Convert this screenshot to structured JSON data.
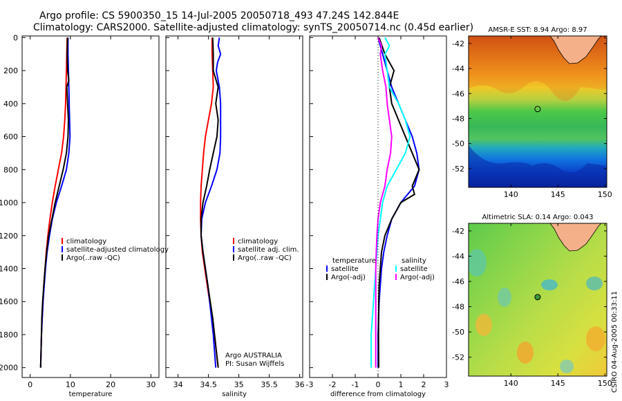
{
  "figure": {
    "title_line1": "Argo profile: CS 5900350_15 14-Jul-2005 20050718_493 47.24S 142.844E",
    "title_line2": "Climatology: CARS2000. Satellite-adjusted climatology: synTS_20050714.nc (0.45d earlier)",
    "side_stamp": "CSIRO 04-Aug-2005 00:33:11",
    "credit_line1": "Argo AUSTRALIA",
    "credit_line2": "PI: Susan Wijffels"
  },
  "colors": {
    "red": "#ff0000",
    "blue": "#0000ff",
    "black": "#000000",
    "cyan": "#00ffff",
    "magenta": "#ff00ff"
  },
  "chart_data": [
    {
      "type": "line",
      "id": "temperature",
      "xlabel": "temperature",
      "ylabel": "depth",
      "xlim": [
        -2,
        32
      ],
      "ylim": [
        2060,
        -10
      ],
      "xticks": [
        0,
        10,
        20,
        30
      ],
      "yticks": [
        0,
        200,
        400,
        600,
        800,
        1000,
        1200,
        1400,
        1600,
        1800,
        2000
      ],
      "legend": [
        "climatology",
        "satellite-adjusted climatology",
        "Argo(..raw -QC)"
      ],
      "series": [
        {
          "name": "climatology",
          "color": "red",
          "points": [
            [
              9.2,
              0
            ],
            [
              9.1,
              100
            ],
            [
              9.0,
              200
            ],
            [
              8.9,
              300
            ],
            [
              8.8,
              400
            ],
            [
              8.6,
              500
            ],
            [
              8.3,
              600
            ],
            [
              7.8,
              700
            ],
            [
              7.0,
              800
            ],
            [
              6.2,
              900
            ],
            [
              5.5,
              1000
            ],
            [
              4.9,
              1100
            ],
            [
              4.4,
              1200
            ],
            [
              4.0,
              1300
            ],
            [
              3.7,
              1400
            ],
            [
              3.4,
              1500
            ],
            [
              3.2,
              1600
            ],
            [
              3.0,
              1700
            ],
            [
              2.8,
              1800
            ],
            [
              2.7,
              1900
            ],
            [
              2.6,
              2000
            ]
          ]
        },
        {
          "name": "satellite-adjusted climatology",
          "color": "blue",
          "points": [
            [
              9.4,
              0
            ],
            [
              9.4,
              100
            ],
            [
              9.5,
              200
            ],
            [
              9.6,
              300
            ],
            [
              9.7,
              400
            ],
            [
              9.8,
              500
            ],
            [
              9.9,
              600
            ],
            [
              9.6,
              700
            ],
            [
              9.0,
              800
            ],
            [
              7.8,
              900
            ],
            [
              6.5,
              1000
            ],
            [
              5.5,
              1100
            ],
            [
              4.8,
              1200
            ],
            [
              4.2,
              1300
            ],
            [
              3.8,
              1400
            ],
            [
              3.5,
              1500
            ],
            [
              3.2,
              1600
            ],
            [
              3.0,
              1700
            ],
            [
              2.8,
              1800
            ],
            [
              2.7,
              1900
            ],
            [
              2.6,
              2000
            ]
          ]
        },
        {
          "name": "Argo(..raw -QC)",
          "color": "black",
          "points": [
            [
              9.3,
              0
            ],
            [
              9.2,
              100
            ],
            [
              9.3,
              200
            ],
            [
              9.6,
              260
            ],
            [
              9.1,
              300
            ],
            [
              9.3,
              400
            ],
            [
              9.5,
              500
            ],
            [
              9.4,
              600
            ],
            [
              9.0,
              700
            ],
            [
              8.2,
              800
            ],
            [
              7.2,
              900
            ],
            [
              6.2,
              1000
            ],
            [
              5.4,
              1100
            ],
            [
              4.6,
              1200
            ],
            [
              4.1,
              1300
            ],
            [
              3.7,
              1400
            ],
            [
              3.4,
              1500
            ],
            [
              3.1,
              1600
            ],
            [
              2.9,
              1700
            ],
            [
              2.8,
              1800
            ],
            [
              2.7,
              1900
            ],
            [
              2.6,
              2000
            ]
          ]
        }
      ]
    },
    {
      "type": "line",
      "id": "salinity",
      "xlabel": "salinity",
      "ylabel": "depth",
      "xlim": [
        33.8,
        36.05
      ],
      "ylim": [
        2060,
        -10
      ],
      "xticks": [
        34,
        34.5,
        35,
        35.5,
        36
      ],
      "legend": [
        "climatology",
        "satellite adj. clim.",
        "Argo(..raw -QC)"
      ],
      "series": [
        {
          "name": "climatology",
          "color": "red",
          "points": [
            [
              34.56,
              0
            ],
            [
              34.56,
              100
            ],
            [
              34.57,
              200
            ],
            [
              34.58,
              300
            ],
            [
              34.55,
              400
            ],
            [
              34.5,
              500
            ],
            [
              34.45,
              600
            ],
            [
              34.42,
              700
            ],
            [
              34.4,
              800
            ],
            [
              34.38,
              900
            ],
            [
              34.37,
              1000
            ],
            [
              34.37,
              1100
            ],
            [
              34.38,
              1200
            ],
            [
              34.4,
              1300
            ],
            [
              34.44,
              1400
            ],
            [
              34.48,
              1500
            ],
            [
              34.52,
              1600
            ],
            [
              34.56,
              1700
            ],
            [
              34.6,
              1800
            ],
            [
              34.63,
              1900
            ],
            [
              34.66,
              2000
            ]
          ]
        },
        {
          "name": "satellite adj. clim.",
          "color": "blue",
          "points": [
            [
              34.68,
              0
            ],
            [
              34.66,
              50
            ],
            [
              34.7,
              100
            ],
            [
              34.65,
              150
            ],
            [
              34.63,
              200
            ],
            [
              34.68,
              300
            ],
            [
              34.7,
              400
            ],
            [
              34.7,
              500
            ],
            [
              34.7,
              600
            ],
            [
              34.69,
              700
            ],
            [
              34.64,
              800
            ],
            [
              34.55,
              900
            ],
            [
              34.45,
              1000
            ],
            [
              34.39,
              1100
            ],
            [
              34.38,
              1200
            ],
            [
              34.41,
              1300
            ],
            [
              34.45,
              1400
            ],
            [
              34.49,
              1500
            ],
            [
              34.52,
              1600
            ],
            [
              34.55,
              1700
            ],
            [
              34.58,
              1800
            ],
            [
              34.6,
              1900
            ],
            [
              34.62,
              2000
            ]
          ]
        },
        {
          "name": "Argo(..raw -QC)",
          "color": "black",
          "points": [
            [
              34.57,
              0
            ],
            [
              34.58,
              100
            ],
            [
              34.58,
              200
            ],
            [
              34.66,
              300
            ],
            [
              34.62,
              400
            ],
            [
              34.66,
              500
            ],
            [
              34.64,
              600
            ],
            [
              34.58,
              700
            ],
            [
              34.52,
              800
            ],
            [
              34.47,
              900
            ],
            [
              34.41,
              1000
            ],
            [
              34.38,
              1100
            ],
            [
              34.38,
              1200
            ],
            [
              34.41,
              1300
            ],
            [
              34.45,
              1400
            ],
            [
              34.49,
              1500
            ],
            [
              34.53,
              1600
            ],
            [
              34.57,
              1700
            ],
            [
              34.6,
              1800
            ],
            [
              34.63,
              1900
            ],
            [
              34.66,
              2000
            ]
          ]
        }
      ]
    },
    {
      "type": "line",
      "id": "difference",
      "xlabel": "difference from climatology",
      "ylabel": "depth",
      "xlim": [
        -3,
        3
      ],
      "ylim": [
        2060,
        -10
      ],
      "xticks": [
        -3,
        -2,
        -1,
        0,
        1,
        2,
        3
      ],
      "legend_left_title": "temperature",
      "legend_right_title": "salinity",
      "legend": [
        "satellite",
        "Argo(-adj)",
        "satellite",
        "Argo(-adj)"
      ],
      "series": [
        {
          "name": "temperature satellite",
          "color": "blue",
          "points": [
            [
              0.0,
              0
            ],
            [
              0.2,
              100
            ],
            [
              0.4,
              200
            ],
            [
              0.6,
              300
            ],
            [
              0.9,
              400
            ],
            [
              1.2,
              500
            ],
            [
              1.5,
              600
            ],
            [
              1.7,
              700
            ],
            [
              1.8,
              800
            ],
            [
              1.6,
              900
            ],
            [
              1.0,
              1000
            ],
            [
              0.6,
              1100
            ],
            [
              0.4,
              1200
            ],
            [
              0.25,
              1300
            ],
            [
              0.15,
              1400
            ],
            [
              0.1,
              1500
            ],
            [
              0.05,
              1600
            ],
            [
              0.02,
              1700
            ],
            [
              0.0,
              1800
            ],
            [
              0.0,
              1900
            ],
            [
              0.0,
              2000
            ]
          ]
        },
        {
          "name": "temperature Argo(-adj)",
          "color": "black",
          "points": [
            [
              0.05,
              0
            ],
            [
              0.3,
              100
            ],
            [
              0.7,
              200
            ],
            [
              0.5,
              300
            ],
            [
              0.6,
              400
            ],
            [
              0.9,
              500
            ],
            [
              1.2,
              600
            ],
            [
              1.5,
              700
            ],
            [
              1.8,
              800
            ],
            [
              1.5,
              900
            ],
            [
              1.6,
              950
            ],
            [
              1.0,
              1000
            ],
            [
              0.6,
              1100
            ],
            [
              0.3,
              1200
            ],
            [
              0.15,
              1300
            ],
            [
              0.1,
              1400
            ],
            [
              0.05,
              1500
            ],
            [
              0.03,
              1600
            ],
            [
              0.02,
              1800
            ],
            [
              0.03,
              2000
            ]
          ]
        },
        {
          "name": "salinity satellite",
          "color": "cyan",
          "points": [
            [
              0.3,
              0
            ],
            [
              0.5,
              50
            ],
            [
              0.3,
              100
            ],
            [
              0.4,
              200
            ],
            [
              0.5,
              300
            ],
            [
              0.9,
              400
            ],
            [
              1.2,
              500
            ],
            [
              1.4,
              600
            ],
            [
              1.2,
              700
            ],
            [
              0.8,
              800
            ],
            [
              0.4,
              900
            ],
            [
              0.2,
              1000
            ],
            [
              0.1,
              1100
            ],
            [
              0.0,
              1200
            ],
            [
              -0.05,
              1300
            ],
            [
              -0.1,
              1400
            ],
            [
              -0.15,
              1500
            ],
            [
              -0.2,
              1600
            ],
            [
              -0.25,
              1700
            ],
            [
              -0.3,
              1800
            ],
            [
              -0.3,
              1900
            ],
            [
              -0.3,
              2000
            ]
          ]
        },
        {
          "name": "salinity Argo(-adj)",
          "color": "magenta",
          "points": [
            [
              0.0,
              0
            ],
            [
              0.15,
              50
            ],
            [
              0.1,
              100
            ],
            [
              0.2,
              200
            ],
            [
              0.35,
              300
            ],
            [
              0.4,
              400
            ],
            [
              0.5,
              500
            ],
            [
              0.6,
              600
            ],
            [
              0.55,
              700
            ],
            [
              0.4,
              800
            ],
            [
              0.3,
              900
            ],
            [
              0.1,
              1000
            ],
            [
              0.0,
              1100
            ],
            [
              -0.05,
              1200
            ],
            [
              -0.08,
              1300
            ],
            [
              -0.1,
              1400
            ],
            [
              -0.1,
              1600
            ],
            [
              -0.1,
              1800
            ],
            [
              -0.1,
              2000
            ]
          ]
        }
      ]
    },
    {
      "type": "heatmap",
      "id": "sst-map",
      "title": "AMSR-E SST: 8.94 Argo: 8.97",
      "xlim": [
        135.5,
        150.2
      ],
      "ylim": [
        -53.5,
        -41.4
      ],
      "xticks": [
        140,
        145,
        150
      ],
      "yticks": [
        -42,
        -44,
        -46,
        -48,
        -50,
        -52
      ],
      "float_position": [
        142.844,
        -47.24
      ]
    },
    {
      "type": "heatmap",
      "id": "sla-map",
      "title": "Altimetric SLA: 0.14 Argo: 0.043",
      "xlim": [
        135.5,
        150.2
      ],
      "ylim": [
        -53.5,
        -41.4
      ],
      "xticks": [
        140,
        145,
        150
      ],
      "yticks": [
        -42,
        -44,
        -46,
        -48,
        -50,
        -52
      ],
      "float_position": [
        142.844,
        -47.24
      ]
    }
  ]
}
